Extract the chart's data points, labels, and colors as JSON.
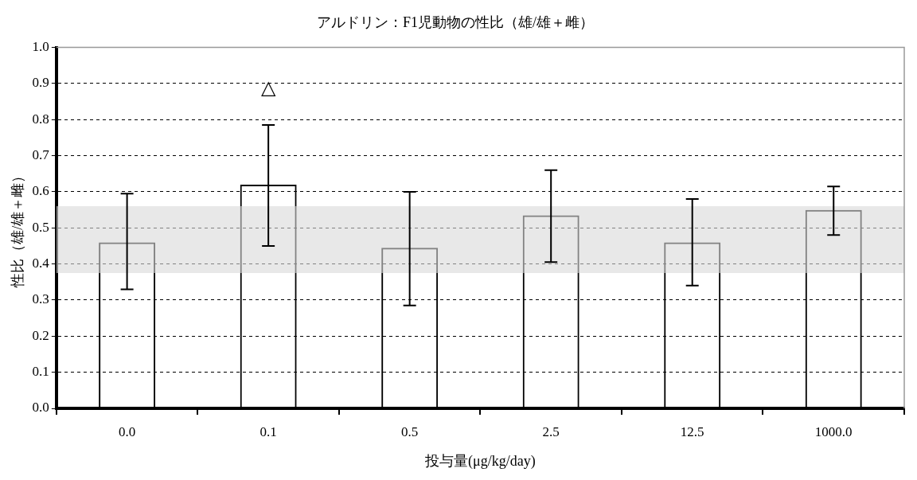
{
  "chart_data": {
    "type": "bar",
    "title": "アルドリン：F1児動物の性比（雄/雄＋雌）",
    "xlabel": "投与量(μg/kg/day)",
    "ylabel": "性比（雄/雄＋雌）",
    "categories": [
      "0.0",
      "0.1",
      "0.5",
      "2.5",
      "12.5",
      "1000.0"
    ],
    "values": [
      0.46,
      0.62,
      0.445,
      0.535,
      0.46,
      0.55
    ],
    "errors": [
      [
        0.33,
        0.595
      ],
      [
        0.45,
        0.785
      ],
      [
        0.285,
        0.6
      ],
      [
        0.405,
        0.66
      ],
      [
        0.34,
        0.58
      ],
      [
        0.48,
        0.615
      ]
    ],
    "color": "#000000",
    "ylim": [
      0,
      1
    ],
    "yticks": [
      {
        "value": 0,
        "label": "0.0"
      },
      {
        "value": 0.1,
        "label": "0.1"
      },
      {
        "value": 0.2,
        "label": "0.2"
      },
      {
        "value": 0.3,
        "label": "0.3"
      },
      {
        "value": 0.4,
        "label": "0.4"
      },
      {
        "value": 0.5,
        "label": "0.5"
      },
      {
        "value": 0.6,
        "label": "0.6"
      },
      {
        "value": 0.7,
        "label": "0.7"
      },
      {
        "value": 0.8,
        "label": "0.8"
      },
      {
        "value": 0.9,
        "label": "0.9"
      },
      {
        "value": 1,
        "label": "1.0"
      }
    ],
    "grid": "y",
    "bands": [
      {
        "axis": "y",
        "from": 0.375,
        "to": 0.56,
        "color": "#d9d9d9"
      }
    ],
    "annotations": [
      "△"
    ],
    "legend": false
  }
}
